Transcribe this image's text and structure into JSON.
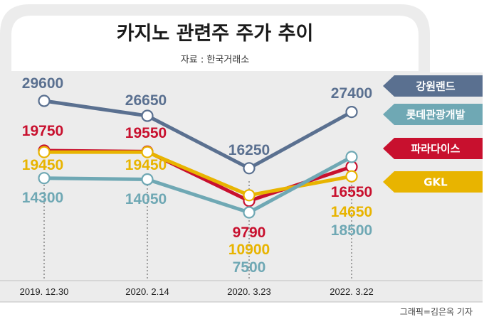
{
  "chart_data": {
    "type": "line",
    "title": "카지노 관련주 주가 추이",
    "source": "자료 : 한국거래소",
    "credit": "그래픽=김은옥 기자",
    "categories": [
      "2019. 12.30",
      "2020. 2.14",
      "2020. 3.23",
      "2022. 3.22"
    ],
    "ylabel": "",
    "xlabel": "",
    "series": [
      {
        "name": "강원랜드",
        "color": "#5a7090",
        "values": [
          29600,
          26650,
          16250,
          27400
        ],
        "labels": [
          "29600",
          "26650",
          "16250",
          "27400"
        ]
      },
      {
        "name": "파라다이스",
        "color": "#c8102e",
        "values": [
          19750,
          19550,
          9790,
          16550
        ],
        "labels": [
          "19750",
          "19550",
          "9790",
          "16550"
        ]
      },
      {
        "name": "GKL",
        "color": "#e8b400",
        "values": [
          19450,
          19450,
          10900,
          14650
        ],
        "labels": [
          "19450",
          "19450",
          "10900",
          "14650"
        ]
      },
      {
        "name": "롯데관광개발",
        "color": "#6fa8b4",
        "values": [
          14300,
          14050,
          7500,
          18500
        ],
        "labels": [
          "14300",
          "14050",
          "7500",
          "18500"
        ]
      }
    ],
    "legend_order": [
      "강원랜드",
      "롯데관광개발",
      "파라다이스",
      "GKL"
    ]
  }
}
